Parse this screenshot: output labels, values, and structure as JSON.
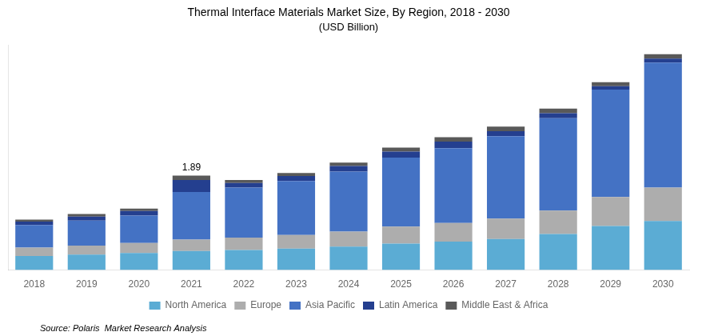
{
  "chart_data": {
    "type": "bar",
    "stacked": true,
    "title": "Thermal Interface Materials Market Size, By Region, 2018 - 2030",
    "subtitle": "(USD Billion)",
    "categories": [
      "2018",
      "2019",
      "2020",
      "2021",
      "2022",
      "2023",
      "2024",
      "2025",
      "2026",
      "2027",
      "2028",
      "2029",
      "2030"
    ],
    "series": [
      {
        "name": "North America",
        "color": "#5BACD4",
        "values": [
          0.28,
          0.31,
          0.34,
          0.38,
          0.4,
          0.43,
          0.47,
          0.53,
          0.57,
          0.62,
          0.72,
          0.88,
          0.98
        ]
      },
      {
        "name": "Europe",
        "color": "#ADADAD",
        "values": [
          0.17,
          0.18,
          0.2,
          0.23,
          0.25,
          0.27,
          0.3,
          0.34,
          0.37,
          0.41,
          0.47,
          0.58,
          0.67
        ]
      },
      {
        "name": "Asia Pacific",
        "color": "#4472C4",
        "values": [
          0.45,
          0.5,
          0.55,
          0.95,
          1.0,
          1.08,
          1.2,
          1.38,
          1.5,
          1.65,
          1.85,
          2.15,
          2.5
        ]
      },
      {
        "name": "Latin America",
        "color": "#243F8F",
        "values": [
          0.07,
          0.08,
          0.09,
          0.24,
          0.09,
          0.1,
          0.11,
          0.12,
          0.13,
          0.1,
          0.1,
          0.07,
          0.08
        ]
      },
      {
        "name": "Middle East & Africa",
        "color": "#595959",
        "values": [
          0.04,
          0.05,
          0.05,
          0.09,
          0.06,
          0.06,
          0.07,
          0.08,
          0.09,
          0.09,
          0.09,
          0.08,
          0.09
        ]
      }
    ],
    "ylim": [
      0,
      4.5
    ],
    "tick_labels": "x",
    "grid": false,
    "legend": "bottom",
    "annotations": [
      {
        "text": "1.89",
        "x": "2021",
        "y": 1.89
      },
      {
        "text": "Source: Polaris  Market Research Analysis"
      }
    ]
  }
}
